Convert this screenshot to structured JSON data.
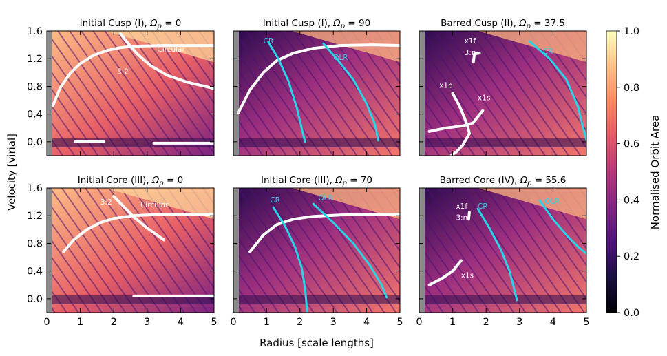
{
  "chart_data": {
    "type": "heatmap",
    "figure": {
      "shared_xlabel": "Radius [scale lengths]",
      "shared_ylabel": "Velocity [virial]",
      "xlim": [
        0,
        5
      ],
      "ylim": [
        -0.2,
        1.6
      ],
      "xticks": [
        0,
        1,
        2,
        3,
        4,
        5
      ],
      "yticks": [
        0.0,
        0.4,
        0.8,
        1.2,
        1.6
      ],
      "ytick_labels": [
        "0.0",
        "0.4",
        "0.8",
        "1.2",
        "1.6"
      ]
    },
    "colorbar": {
      "label": "Normalised Orbit Area",
      "range": [
        0.0,
        1.0
      ],
      "ticks": [
        0.0,
        0.2,
        0.4,
        0.6,
        0.8,
        1.0
      ],
      "tick_labels": [
        "0.0",
        "0.2",
        "0.4",
        "0.6",
        "0.8",
        "1.0"
      ],
      "colormap": [
        "#000004",
        "#3b0f70",
        "#8c2981",
        "#de4968",
        "#fe9f6d",
        "#fcfdbf"
      ]
    },
    "panels": [
      {
        "title_main": "Initial Cusp (I), ",
        "title_math": "Ω",
        "title_sub": "p",
        "title_value": " = 0",
        "annotations": [
          {
            "text": "Circular",
            "x": 3.3,
            "y": 1.3,
            "color": "#ffffff"
          },
          {
            "text": "3:2",
            "x": 2.1,
            "y": 0.98,
            "color": "#ffffff"
          }
        ],
        "white_curves": [
          {
            "name": "circular",
            "points": [
              [
                0.18,
                0.52
              ],
              [
                0.4,
                0.78
              ],
              [
                0.7,
                0.99
              ],
              [
                1.0,
                1.13
              ],
              [
                1.4,
                1.25
              ],
              [
                1.8,
                1.32
              ],
              [
                2.2,
                1.36
              ],
              [
                2.6,
                1.38
              ],
              [
                3.5,
                1.39
              ],
              [
                4.5,
                1.39
              ],
              [
                5.0,
                1.39
              ]
            ]
          },
          {
            "name": "resonance-3-2",
            "points": [
              [
                2.2,
                1.56
              ],
              [
                2.4,
                1.44
              ],
              [
                2.7,
                1.27
              ],
              [
                3.1,
                1.1
              ],
              [
                3.6,
                0.96
              ],
              [
                4.2,
                0.86
              ],
              [
                5.0,
                0.77
              ]
            ]
          },
          {
            "name": "low-band-1",
            "points": [
              [
                0.85,
                0.0
              ],
              [
                1.7,
                0.0
              ]
            ]
          },
          {
            "name": "low-band-2",
            "points": [
              [
                3.2,
                -0.02
              ],
              [
                5.0,
                -0.02
              ]
            ]
          }
        ],
        "cyan_curves": []
      },
      {
        "title_main": "Initial Cusp (I), ",
        "title_math": "Ω",
        "title_sub": "p",
        "title_value": " = 90",
        "annotations": [
          {
            "text": "CR",
            "x": 0.9,
            "y": 1.42,
            "color": "#29d4e8"
          },
          {
            "text": "OLR",
            "x": 3.0,
            "y": 1.18,
            "color": "#29d4e8"
          }
        ],
        "white_curves": [
          {
            "name": "circular",
            "points": [
              [
                0.15,
                0.42
              ],
              [
                0.5,
                0.75
              ],
              [
                0.9,
                1.0
              ],
              [
                1.3,
                1.17
              ],
              [
                1.8,
                1.28
              ],
              [
                2.4,
                1.35
              ],
              [
                3.2,
                1.39
              ],
              [
                4.2,
                1.4
              ],
              [
                5.0,
                1.39
              ]
            ]
          }
        ],
        "cyan_curves": [
          {
            "name": "cr-curve",
            "points": [
              [
                1.05,
                1.44
              ],
              [
                1.35,
                1.2
              ],
              [
                1.65,
                0.88
              ],
              [
                1.9,
                0.5
              ],
              [
                2.05,
                0.2
              ],
              [
                2.15,
                0.0
              ]
            ]
          },
          {
            "name": "olr-curve",
            "points": [
              [
                2.7,
                1.42
              ],
              [
                3.1,
                1.2
              ],
              [
                3.6,
                0.9
              ],
              [
                4.0,
                0.55
              ],
              [
                4.25,
                0.25
              ],
              [
                4.35,
                0.02
              ]
            ]
          }
        ]
      },
      {
        "title_main": "Barred Cusp (II), ",
        "title_math": "Ω",
        "title_sub": "p",
        "title_value": " = 37.5",
        "annotations": [
          {
            "text": "x1f",
            "x": 1.35,
            "y": 1.42,
            "color": "#ffffff"
          },
          {
            "text": "3:n",
            "x": 1.35,
            "y": 1.25,
            "color": "#ffffff"
          },
          {
            "text": "x1b",
            "x": 0.6,
            "y": 0.78,
            "color": "#ffffff"
          },
          {
            "text": "x1s",
            "x": 1.75,
            "y": 0.6,
            "color": "#ffffff"
          },
          {
            "text": "CR",
            "x": 3.7,
            "y": 1.27,
            "color": "#29d4e8"
          }
        ],
        "white_curves": [
          {
            "name": "x1b",
            "points": [
              [
                1.0,
                0.7
              ],
              [
                1.2,
                0.52
              ],
              [
                1.35,
                0.35
              ],
              [
                1.45,
                0.22
              ],
              [
                1.5,
                0.12
              ]
            ]
          },
          {
            "name": "x1b-lower",
            "points": [
              [
                1.5,
                0.12
              ],
              [
                1.3,
                -0.05
              ],
              [
                1.1,
                -0.15
              ],
              [
                0.95,
                -0.2
              ]
            ]
          },
          {
            "name": "x1s",
            "points": [
              [
                0.3,
                0.15
              ],
              [
                0.8,
                0.2
              ],
              [
                1.3,
                0.23
              ],
              [
                1.6,
                0.27
              ],
              [
                1.9,
                0.45
              ]
            ]
          },
          {
            "name": "x1f",
            "points": [
              [
                1.62,
                1.15
              ],
              [
                1.65,
                1.27
              ],
              [
                1.8,
                1.28
              ]
            ]
          }
        ],
        "cyan_curves": [
          {
            "name": "cr-curve",
            "points": [
              [
                3.3,
                1.45
              ],
              [
                3.9,
                1.2
              ],
              [
                4.4,
                0.9
              ],
              [
                4.75,
                0.5
              ],
              [
                4.9,
                0.2
              ],
              [
                5.0,
                0.02
              ]
            ]
          }
        ]
      },
      {
        "title_main": "Initial Core (III), ",
        "title_math": "Ω",
        "title_sub": "p",
        "title_value": " = 0",
        "annotations": [
          {
            "text": "3:2",
            "x": 1.6,
            "y": 1.36,
            "color": "#ffffff"
          },
          {
            "text": "Circular",
            "x": 2.8,
            "y": 1.32,
            "color": "#ffffff"
          }
        ],
        "white_curves": [
          {
            "name": "circular",
            "points": [
              [
                0.5,
                0.68
              ],
              [
                0.8,
                0.85
              ],
              [
                1.2,
                1.0
              ],
              [
                1.6,
                1.1
              ],
              [
                2.0,
                1.16
              ],
              [
                2.6,
                1.2
              ],
              [
                3.4,
                1.22
              ],
              [
                5.0,
                1.22
              ]
            ]
          },
          {
            "name": "resonance-3-2",
            "points": [
              [
                2.0,
                1.48
              ],
              [
                2.3,
                1.33
              ],
              [
                2.6,
                1.18
              ],
              [
                3.0,
                1.02
              ],
              [
                3.5,
                0.85
              ]
            ]
          },
          {
            "name": "low-band",
            "points": [
              [
                2.6,
                0.04
              ],
              [
                5.0,
                0.04
              ]
            ]
          }
        ],
        "cyan_curves": []
      },
      {
        "title_main": "Initial Core (III), ",
        "title_math": "Ω",
        "title_sub": "p",
        "title_value": " = 70",
        "annotations": [
          {
            "text": "CR",
            "x": 1.1,
            "y": 1.39,
            "color": "#29d4e8"
          },
          {
            "text": "OLR",
            "x": 2.55,
            "y": 1.42,
            "color": "#29d4e8"
          }
        ],
        "white_curves": [
          {
            "name": "circular",
            "points": [
              [
                0.5,
                0.68
              ],
              [
                0.9,
                0.92
              ],
              [
                1.3,
                1.07
              ],
              [
                1.8,
                1.15
              ],
              [
                2.4,
                1.19
              ],
              [
                3.2,
                1.21
              ],
              [
                4.2,
                1.22
              ],
              [
                5.0,
                1.22
              ]
            ]
          }
        ],
        "cyan_curves": [
          {
            "name": "cr-curve",
            "points": [
              [
                1.2,
                1.32
              ],
              [
                1.55,
                1.05
              ],
              [
                1.85,
                0.75
              ],
              [
                2.05,
                0.45
              ],
              [
                2.15,
                0.15
              ],
              [
                2.2,
                -0.1
              ],
              [
                2.22,
                -0.2
              ]
            ]
          },
          {
            "name": "olr-curve",
            "points": [
              [
                2.4,
                1.37
              ],
              [
                3.0,
                1.1
              ],
              [
                3.6,
                0.8
              ],
              [
                4.1,
                0.48
              ],
              [
                4.45,
                0.2
              ],
              [
                4.6,
                0.02
              ]
            ]
          }
        ]
      },
      {
        "title_main": "Barred Core (IV), ",
        "title_math": "Ω",
        "title_sub": "p",
        "title_value": " = 55.6",
        "annotations": [
          {
            "text": "x1f",
            "x": 1.1,
            "y": 1.3,
            "color": "#ffffff"
          },
          {
            "text": "3:n",
            "x": 1.1,
            "y": 1.14,
            "color": "#ffffff"
          },
          {
            "text": "CR",
            "x": 1.75,
            "y": 1.3,
            "color": "#29d4e8"
          },
          {
            "text": "OLR",
            "x": 3.75,
            "y": 1.37,
            "color": "#29d4e8"
          },
          {
            "text": "x1s",
            "x": 1.25,
            "y": 0.3,
            "color": "#ffffff"
          }
        ],
        "white_curves": [
          {
            "name": "x1s",
            "points": [
              [
                0.3,
                0.2
              ],
              [
                0.7,
                0.3
              ],
              [
                1.0,
                0.4
              ],
              [
                1.25,
                0.55
              ]
            ]
          },
          {
            "name": "x1f",
            "points": [
              [
                1.48,
                1.15
              ],
              [
                1.5,
                1.25
              ]
            ]
          }
        ],
        "cyan_curves": [
          {
            "name": "cr-curve",
            "points": [
              [
                1.75,
                1.3
              ],
              [
                2.1,
                1.02
              ],
              [
                2.45,
                0.7
              ],
              [
                2.7,
                0.4
              ],
              [
                2.85,
                0.12
              ],
              [
                2.92,
                -0.02
              ]
            ]
          },
          {
            "name": "olr-curve",
            "points": [
              [
                3.6,
                1.42
              ],
              [
                4.0,
                1.15
              ],
              [
                4.4,
                0.92
              ],
              [
                4.75,
                0.75
              ],
              [
                5.0,
                0.65
              ]
            ]
          }
        ]
      }
    ]
  }
}
